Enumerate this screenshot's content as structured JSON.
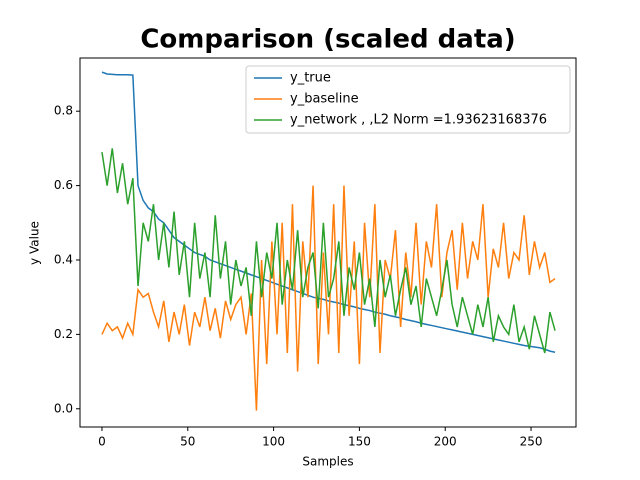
{
  "chart_data": {
    "type": "line",
    "title": "Comparison (scaled data)",
    "x_label": "Samples",
    "y_label": "y Value",
    "x": [
      0,
      3,
      6,
      9,
      12,
      15,
      18,
      21,
      24,
      27,
      30,
      33,
      36,
      39,
      42,
      45,
      48,
      51,
      54,
      57,
      60,
      63,
      66,
      69,
      72,
      75,
      78,
      81,
      84,
      87,
      90,
      93,
      96,
      99,
      102,
      105,
      108,
      111,
      114,
      117,
      120,
      123,
      126,
      129,
      132,
      135,
      138,
      141,
      144,
      147,
      150,
      153,
      156,
      159,
      162,
      165,
      168,
      171,
      174,
      177,
      180,
      183,
      186,
      189,
      192,
      195,
      198,
      201,
      204,
      207,
      210,
      213,
      216,
      219,
      222,
      225,
      228,
      231,
      234,
      237,
      240,
      243,
      246,
      249,
      252,
      255,
      258,
      261,
      264
    ],
    "series": [
      {
        "name": "y_true",
        "color": "#1f77b4",
        "values": [
          0.905,
          0.9,
          0.899,
          0.898,
          0.898,
          0.898,
          0.897,
          0.6,
          0.56,
          0.54,
          0.53,
          0.51,
          0.5,
          0.48,
          0.46,
          0.45,
          0.44,
          0.43,
          0.42,
          0.415,
          0.41,
          0.4,
          0.395,
          0.39,
          0.385,
          0.38,
          0.375,
          0.37,
          0.365,
          0.36,
          0.355,
          0.35,
          0.345,
          0.34,
          0.335,
          0.33,
          0.325,
          0.32,
          0.315,
          0.31,
          0.305,
          0.3,
          0.297,
          0.294,
          0.29,
          0.287,
          0.284,
          0.28,
          0.277,
          0.274,
          0.27,
          0.267,
          0.264,
          0.26,
          0.257,
          0.254,
          0.25,
          0.247,
          0.244,
          0.24,
          0.237,
          0.234,
          0.23,
          0.227,
          0.224,
          0.221,
          0.218,
          0.215,
          0.212,
          0.209,
          0.206,
          0.203,
          0.2,
          0.197,
          0.194,
          0.191,
          0.188,
          0.185,
          0.182,
          0.179,
          0.176,
          0.173,
          0.17,
          0.168,
          0.166,
          0.164,
          0.16,
          0.155,
          0.152
        ]
      },
      {
        "name": "y_baseline",
        "color": "#ff7f0e",
        "values": [
          0.2,
          0.23,
          0.21,
          0.22,
          0.19,
          0.23,
          0.2,
          0.32,
          0.3,
          0.31,
          0.26,
          0.22,
          0.29,
          0.18,
          0.26,
          0.2,
          0.28,
          0.17,
          0.26,
          0.22,
          0.3,
          0.21,
          0.27,
          0.19,
          0.29,
          0.24,
          0.28,
          0.3,
          0.2,
          0.31,
          -0.005,
          0.4,
          0.12,
          0.45,
          0.2,
          0.5,
          0.15,
          0.55,
          0.1,
          0.45,
          0.3,
          0.6,
          0.12,
          0.42,
          0.2,
          0.55,
          0.15,
          0.6,
          0.25,
          0.45,
          0.12,
          0.5,
          0.3,
          0.55,
          0.15,
          0.4,
          0.35,
          0.48,
          0.22,
          0.42,
          0.3,
          0.5,
          0.28,
          0.45,
          0.38,
          0.55,
          0.3,
          0.42,
          0.48,
          0.32,
          0.5,
          0.35,
          0.45,
          0.4,
          0.55,
          0.3,
          0.43,
          0.38,
          0.5,
          0.35,
          0.42,
          0.4,
          0.52,
          0.36,
          0.45,
          0.38,
          0.42,
          0.34,
          0.35
        ]
      },
      {
        "name": "y_network , ,L2 Norm =1.93623168376",
        "color": "#2ca02c",
        "values": [
          0.69,
          0.6,
          0.7,
          0.58,
          0.66,
          0.55,
          0.62,
          0.33,
          0.5,
          0.45,
          0.55,
          0.4,
          0.5,
          0.38,
          0.53,
          0.36,
          0.45,
          0.3,
          0.5,
          0.35,
          0.42,
          0.3,
          0.52,
          0.35,
          0.45,
          0.28,
          0.4,
          0.33,
          0.38,
          0.25,
          0.45,
          0.3,
          0.42,
          0.35,
          0.5,
          0.28,
          0.4,
          0.32,
          0.48,
          0.3,
          0.38,
          0.42,
          0.27,
          0.5,
          0.3,
          0.35,
          0.45,
          0.25,
          0.38,
          0.32,
          0.42,
          0.28,
          0.35,
          0.22,
          0.4,
          0.3,
          0.36,
          0.25,
          0.32,
          0.38,
          0.28,
          0.33,
          0.22,
          0.35,
          0.3,
          0.25,
          0.32,
          0.4,
          0.28,
          0.22,
          0.3,
          0.25,
          0.2,
          0.28,
          0.22,
          0.3,
          0.18,
          0.25,
          0.22,
          0.2,
          0.28,
          0.18,
          0.22,
          0.16,
          0.25,
          0.2,
          0.15,
          0.26,
          0.21
        ]
      }
    ],
    "xlim": [
      -12.8,
      276.2
    ],
    "ylim": [
      -0.049,
      0.943
    ],
    "xticks": [
      0,
      50,
      100,
      150,
      200,
      250
    ],
    "yticks": [
      {
        "value": 0,
        "label": "0.0"
      },
      0.2,
      0.4,
      0.6,
      0.8
    ],
    "legend": "upper right"
  }
}
